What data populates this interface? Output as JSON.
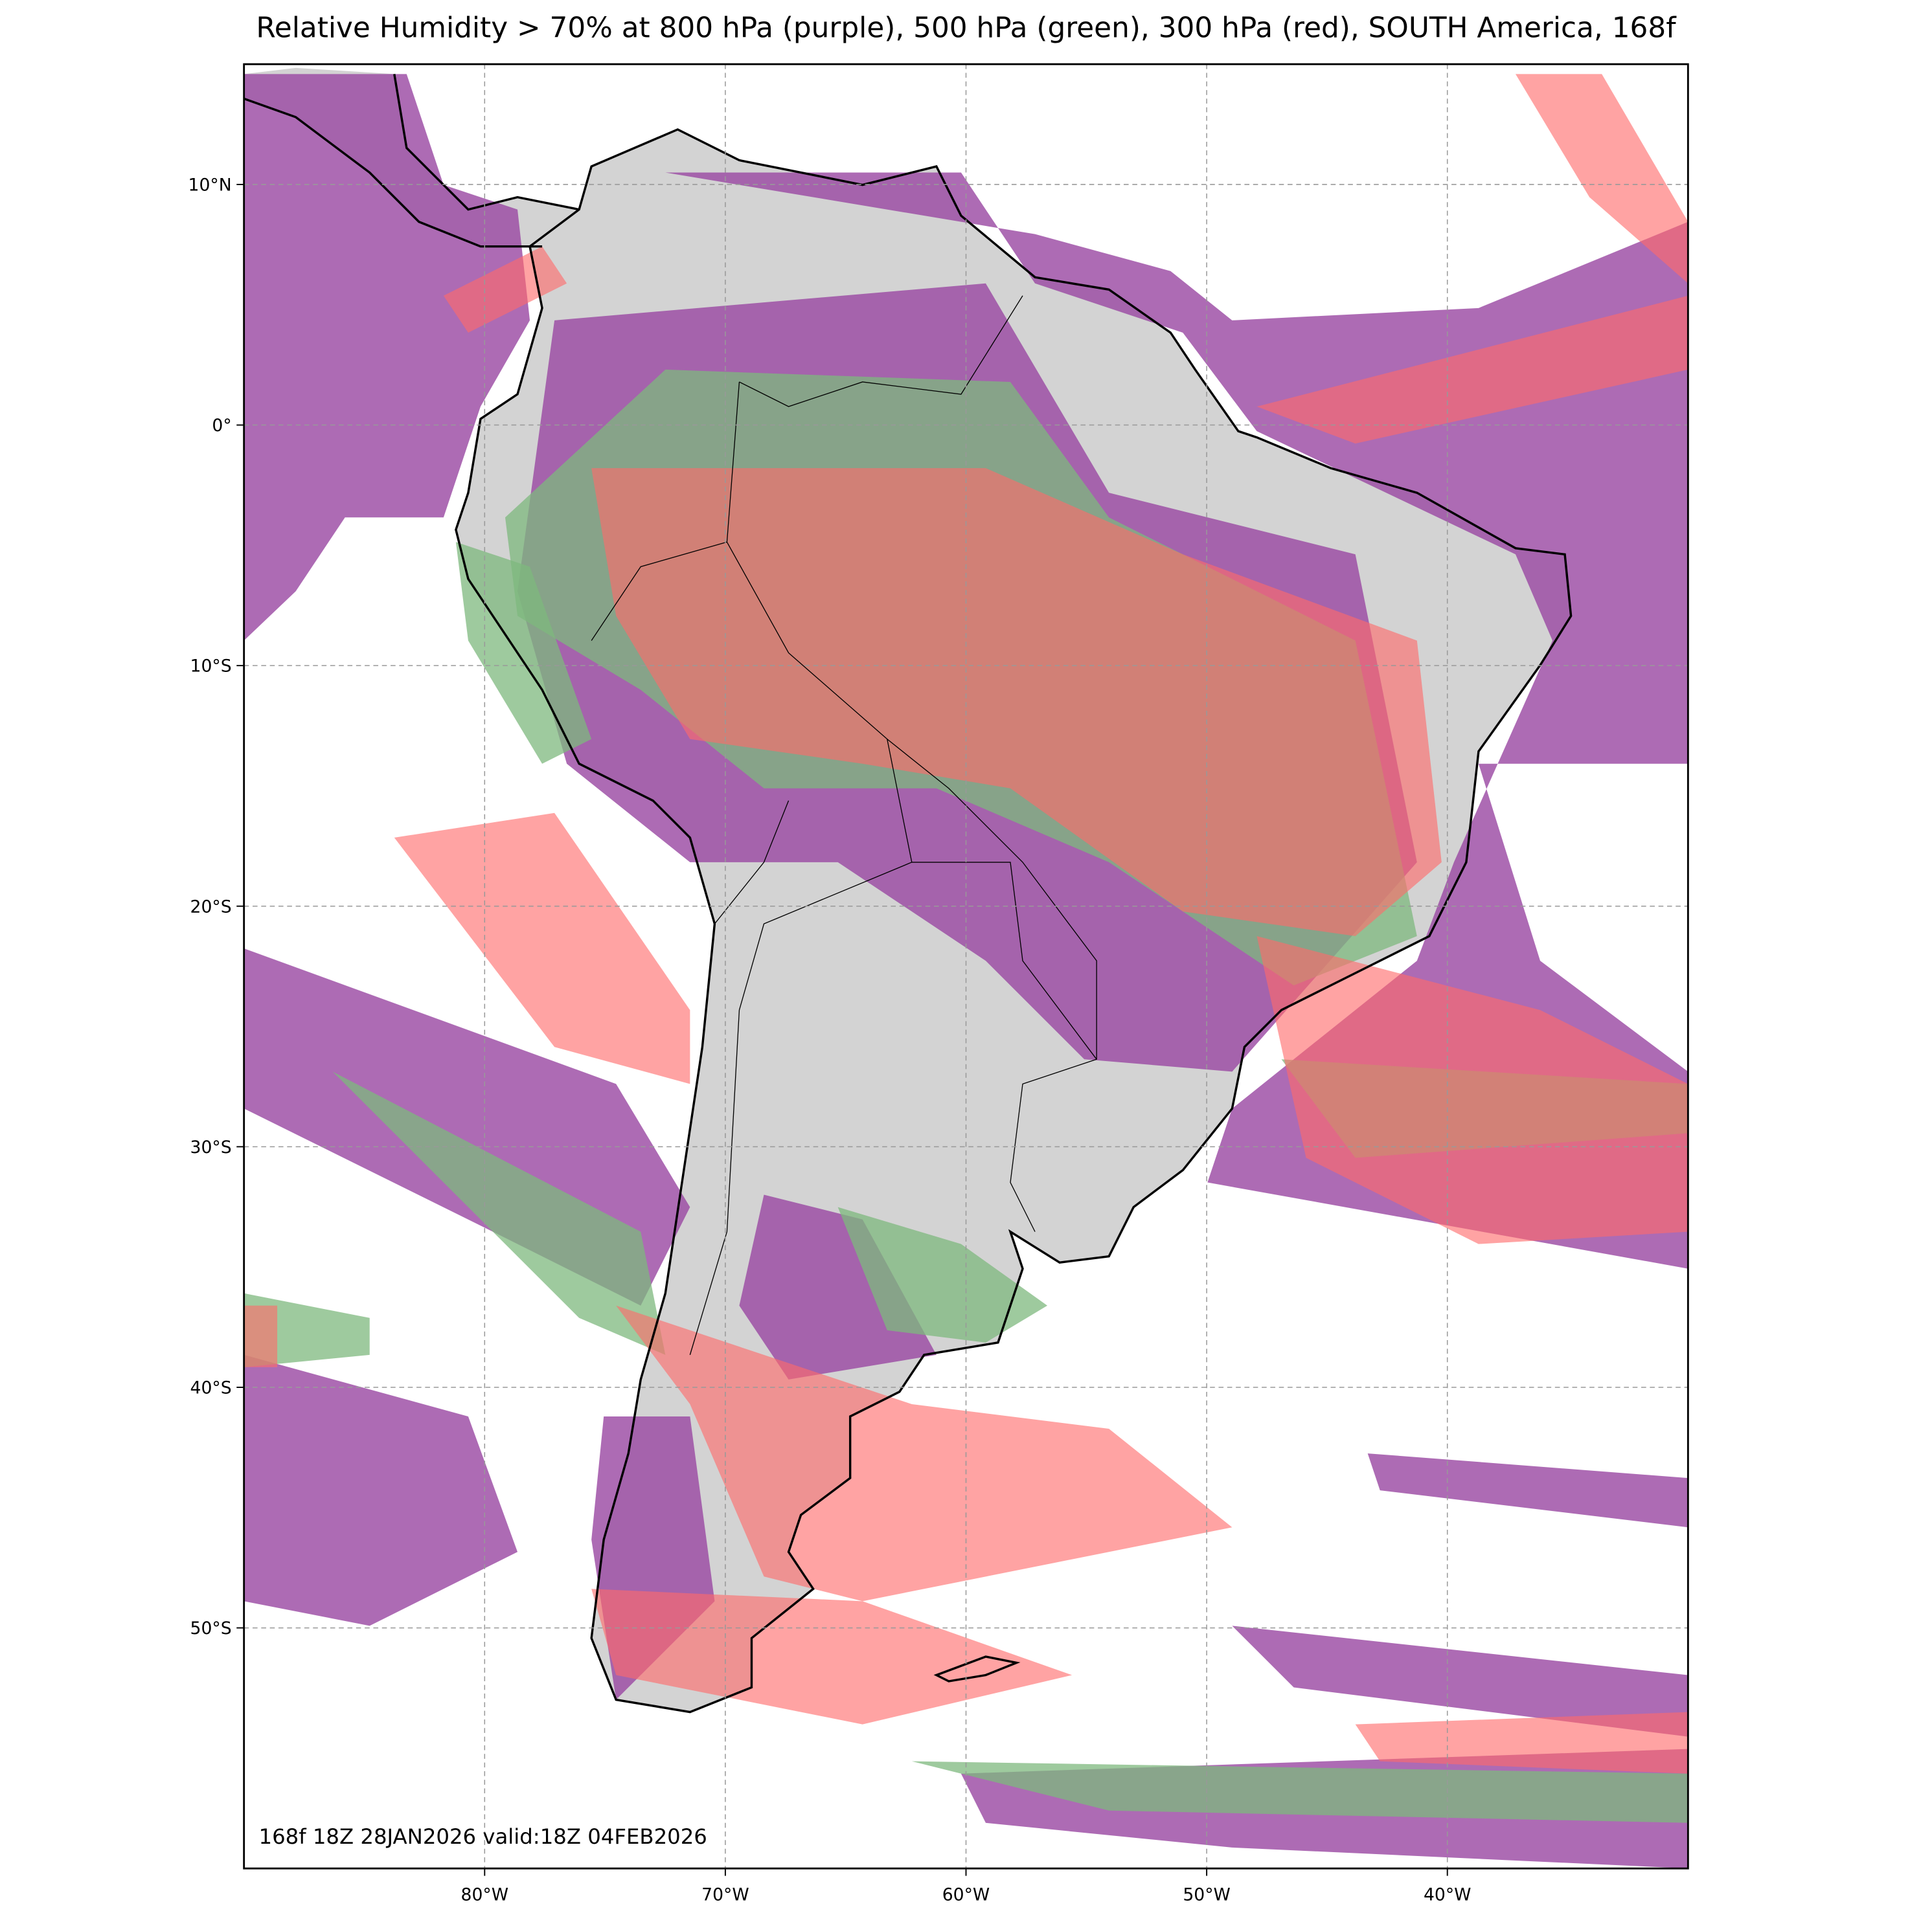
{
  "chart_data": {
    "type": "map",
    "title": "Relative Humidity > 70% at 800 hPa (purple), 500 hPa (green), 300 hPa (red), SOUTH America, 168f",
    "annotation": "168f 18Z 28JAN2026 valid:18Z 04FEB2026",
    "xlim": [
      -90,
      -30
    ],
    "ylim": [
      -60,
      15
    ],
    "xticks": [
      {
        "value": -80,
        "label": "80°W"
      },
      {
        "value": -70,
        "label": "70°W"
      },
      {
        "value": -60,
        "label": "60°W"
      },
      {
        "value": -50,
        "label": "50°W"
      },
      {
        "value": -40,
        "label": "40°W"
      }
    ],
    "yticks": [
      {
        "value": 10,
        "label": "10°N"
      },
      {
        "value": 0,
        "label": "0°"
      },
      {
        "value": -10,
        "label": "10°S"
      },
      {
        "value": -20,
        "label": "20°S"
      },
      {
        "value": -30,
        "label": "30°S"
      },
      {
        "value": -40,
        "label": "40°S"
      },
      {
        "value": -50,
        "label": "50°S"
      }
    ],
    "grid": true
  }
}
